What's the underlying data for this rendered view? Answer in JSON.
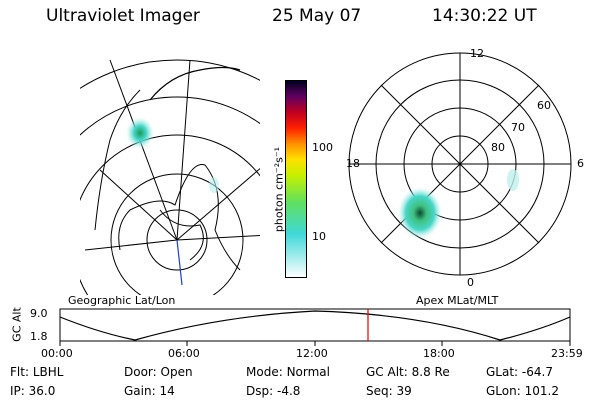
{
  "header": {
    "instrument": "Ultraviolet Imager",
    "date": "25 May 07",
    "time": "14:30:22 UT"
  },
  "left_map": {
    "caption": "Geographic Lat/Lon"
  },
  "colorbar": {
    "unit_label": "photon cm⁻²s⁻¹",
    "ticks": [
      "100",
      "10"
    ]
  },
  "right_map": {
    "caption": "Apex MLat/MLT",
    "mlt_labels": {
      "top": "12",
      "left": "18",
      "right": "6",
      "bottom": "0"
    },
    "lat_labels": [
      "60",
      "70",
      "80"
    ]
  },
  "altitude_plot": {
    "ylabel": "GC Alt",
    "yticks": [
      "9.0",
      "1.8"
    ],
    "xticks": [
      "00:00",
      "06:00",
      "12:00",
      "18:00",
      "23:59"
    ],
    "marker_color": "#e00000"
  },
  "status": {
    "row1": [
      {
        "label": "Flt:",
        "value": "LBHL"
      },
      {
        "label": "Door:",
        "value": "Open"
      },
      {
        "label": "Mode:",
        "value": "Normal"
      },
      {
        "label": "GC Alt:",
        "value": "8.8 Re"
      },
      {
        "label": "GLat:",
        "value": "-64.7"
      }
    ],
    "row2": [
      {
        "label": "IP:",
        "value": "36.0"
      },
      {
        "label": "Gain:",
        "value": "14"
      },
      {
        "label": "Dsp:",
        "value": "-4.8"
      },
      {
        "label": "Seq:",
        "value": "39"
      },
      {
        "label": "GLon:",
        "value": "101.2"
      }
    ]
  }
}
